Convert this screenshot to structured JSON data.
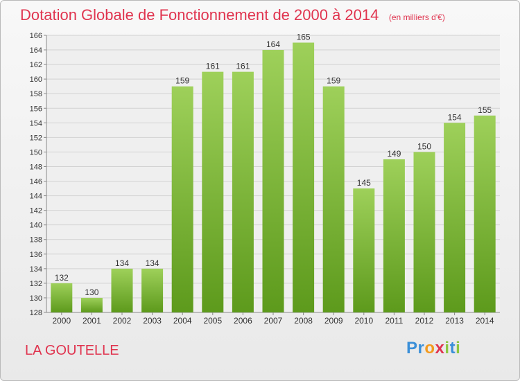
{
  "header": {
    "title": "Dotation Globale de Fonctionnement de 2000 à 2014",
    "subtitle": "(en milliers d'€)"
  },
  "footer": {
    "place": "LA GOUTELLE",
    "logo_letters": [
      {
        "char": "P",
        "color": "#3a8fd8"
      },
      {
        "char": "r",
        "color": "#3a8fd8"
      },
      {
        "char": "o",
        "color": "#f39a1e"
      },
      {
        "char": "x",
        "color": "#e0344f"
      },
      {
        "char": "i",
        "color": "#8cc63f"
      },
      {
        "char": "t",
        "color": "#3a8fd8"
      },
      {
        "char": "i",
        "color": "#8cc63f"
      }
    ]
  },
  "chart_data": {
    "type": "bar",
    "categories": [
      "2000",
      "2001",
      "2002",
      "2003",
      "2004",
      "2005",
      "2006",
      "2007",
      "2008",
      "2009",
      "2010",
      "2011",
      "2012",
      "2013",
      "2014"
    ],
    "values": [
      132,
      130,
      134,
      134,
      159,
      161,
      161,
      164,
      165,
      159,
      145,
      149,
      150,
      154,
      155
    ],
    "ylim": [
      128,
      166
    ],
    "yticks": [
      128,
      130,
      132,
      134,
      136,
      138,
      140,
      142,
      144,
      146,
      148,
      150,
      152,
      154,
      156,
      158,
      160,
      162,
      164,
      166
    ],
    "grid": true,
    "bar_color_top": "#9ed05a",
    "bar_color_bottom": "#5d9a1c"
  }
}
